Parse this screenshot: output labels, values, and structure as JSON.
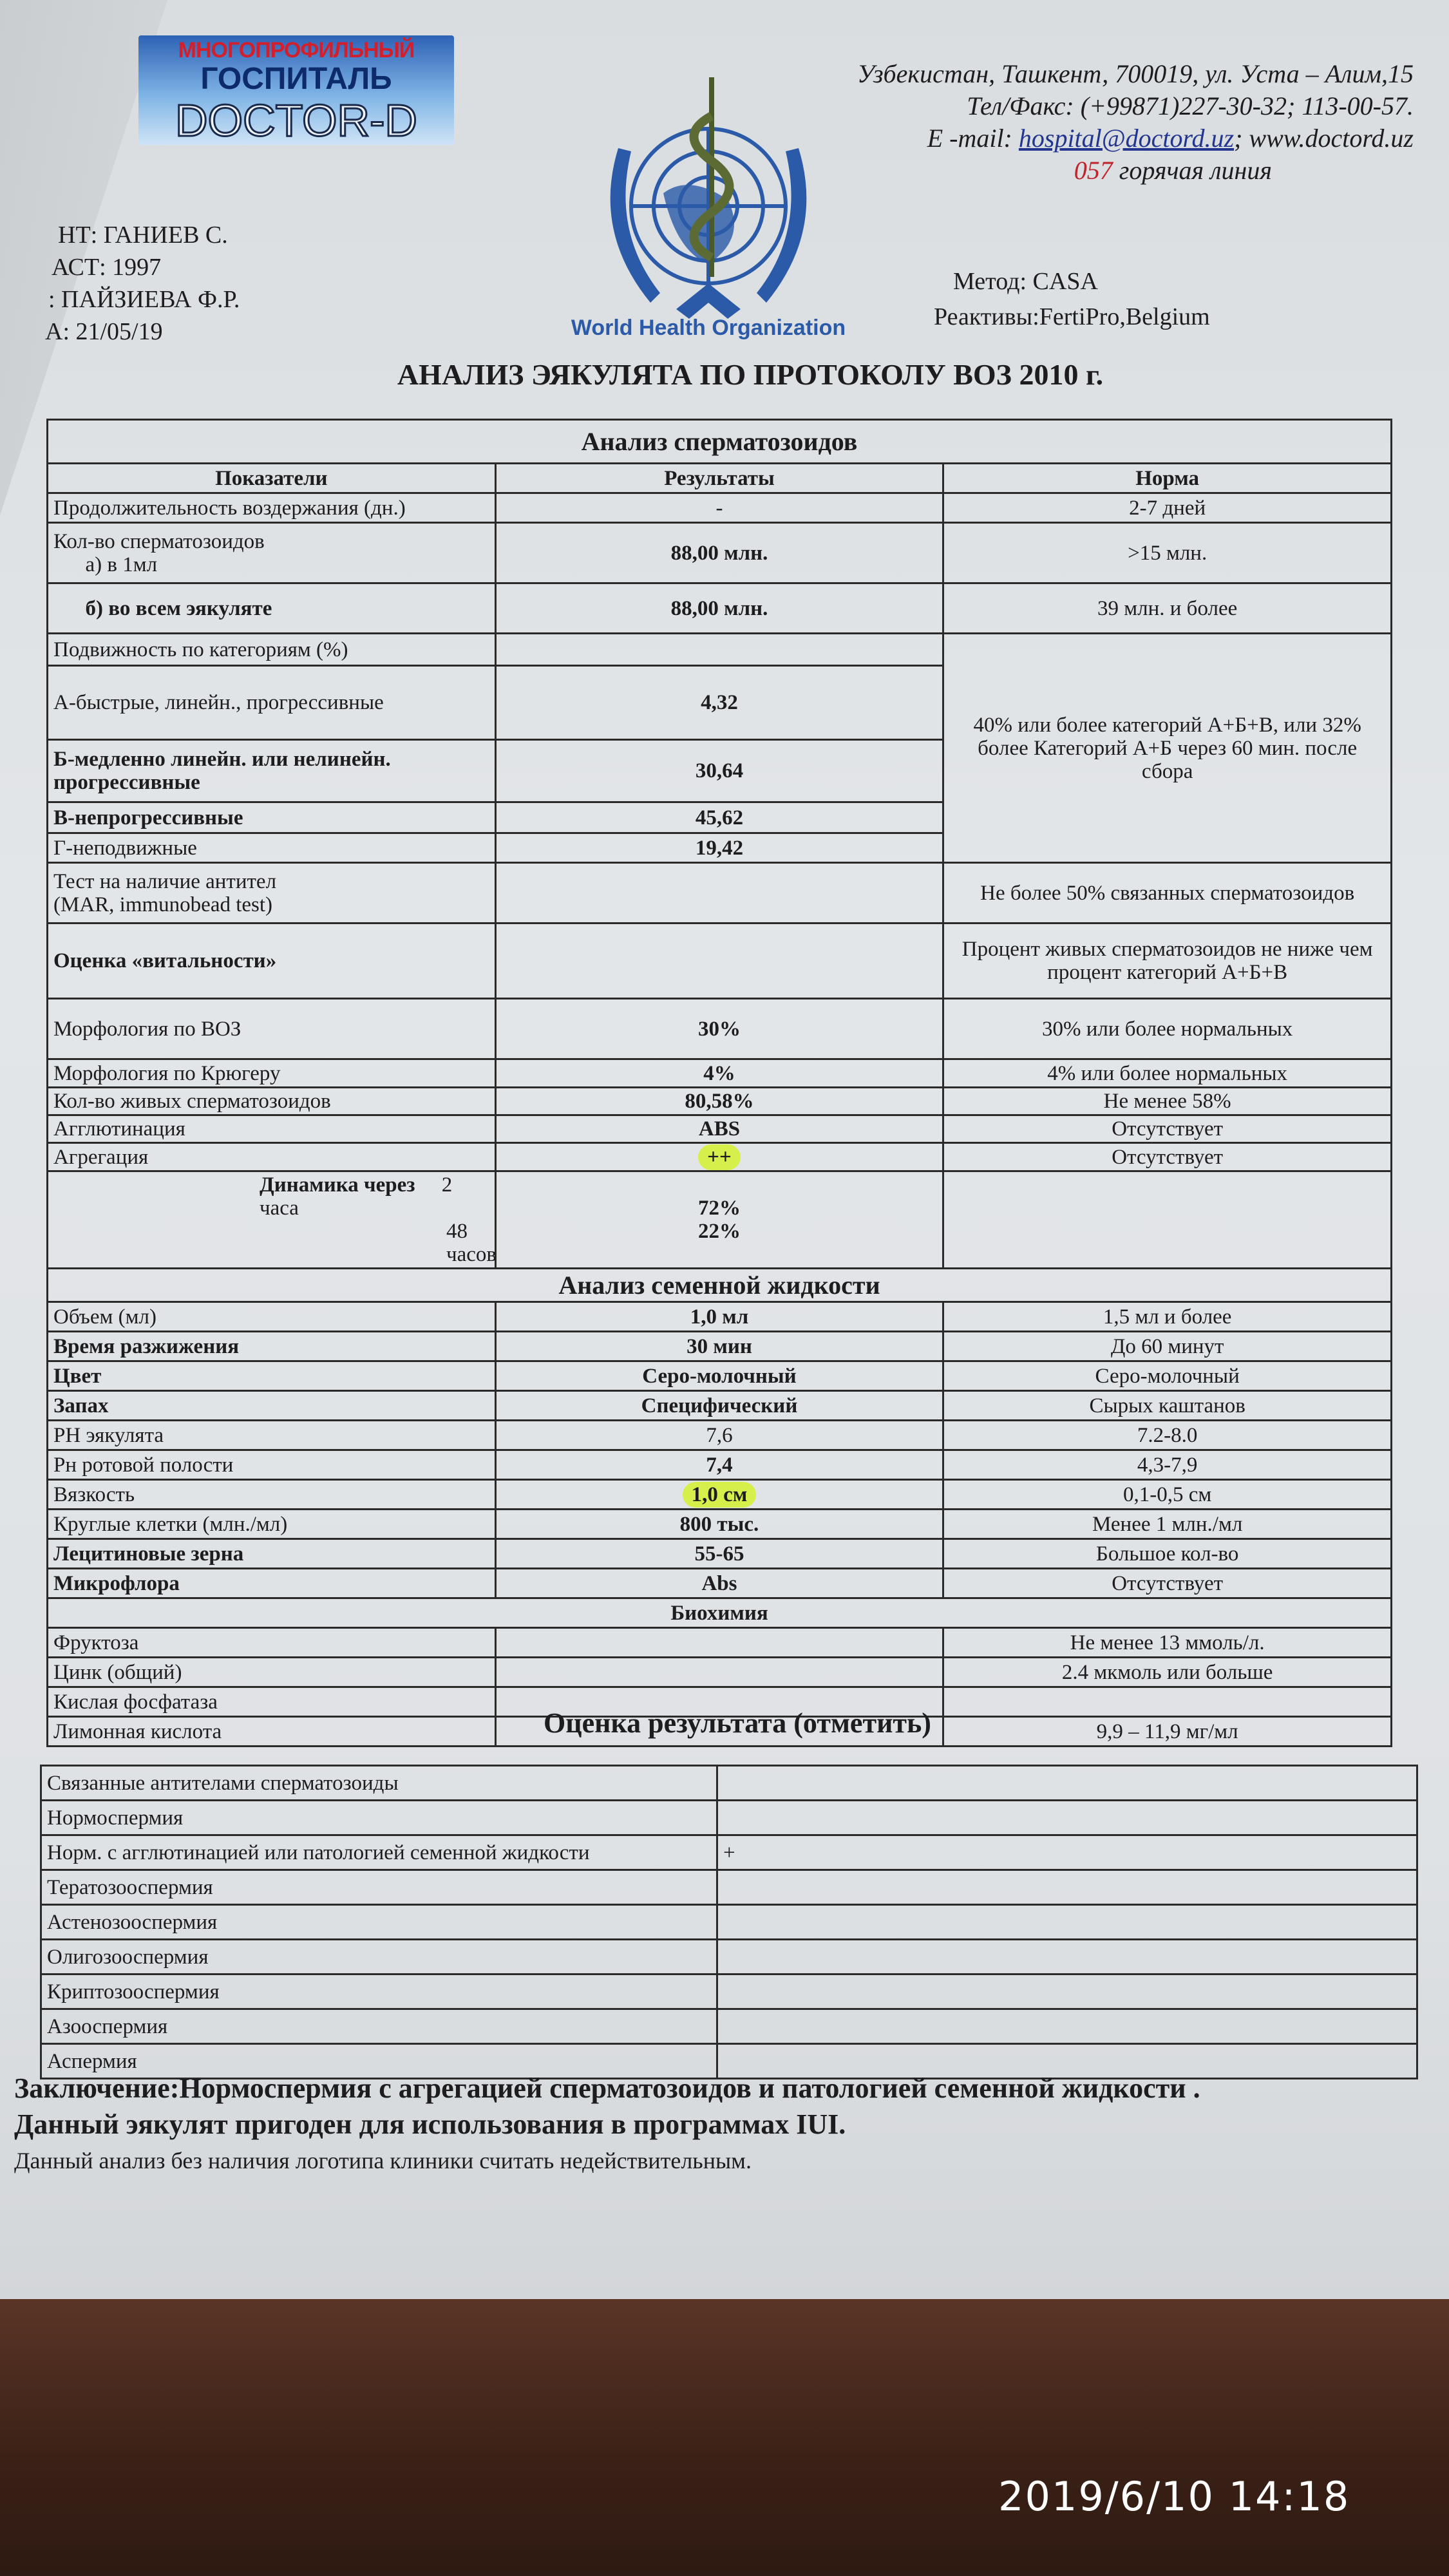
{
  "logo": {
    "line1": "МНОГОПРОФИЛЬНЫЙ",
    "line2": "ГОСПИТАЛЬ",
    "line3": "DOCTOR-D"
  },
  "who": {
    "label": "World Health Organization",
    "icon": "who-emblem-icon",
    "color": "#2a5aa8"
  },
  "address": {
    "line1": "Узбекистан, Ташкент, 700019, ул. Уста – Алим,15",
    "line2": "Тел/Факс: (+99871)227-30-32; 113-00-57.",
    "email_label": "E -mail:",
    "email": "hospital@doctord.uz",
    "website": "; www.doctord.uz",
    "hotline_num": "057",
    "hotline_text": " горячая линия"
  },
  "patient": {
    "name": "НТ: ГАНИЕВ С.",
    "year": "АСТ: 1997",
    "doctor": ": ПАЙЗИЕВА Ф.Р.",
    "date": "А: 21/05/19"
  },
  "method": {
    "method": "Метод: CASA",
    "reagents": "Реактивы:FertiPro,Belgium"
  },
  "title": "АНАЛИЗ ЭЯКУЛЯТА ПО ПРОТОКОЛУ ВОЗ 2010 г.",
  "sperm": {
    "section": "Анализ сперматозоидов",
    "headers": [
      "Показатели",
      "Результаты",
      "Норма"
    ],
    "rows": [
      {
        "label": "Продолжительность воздержания (дн.)",
        "result": "-",
        "norm": "2-7 дней",
        "h": 46
      },
      {
        "label": "Кол-во сперматозоидов\n      а) в 1мл",
        "result": "88,00  млн.",
        "norm": ">15 млн.",
        "h": 94,
        "bold": true
      },
      {
        "label": "      б) во всем эякуляте",
        "result": "88,00  млн.",
        "norm": "39 млн. и более",
        "h": 78,
        "bold": true,
        "lbold": true
      },
      {
        "label": "Подвижность по категориям (%)",
        "result": "",
        "norm": "40% или более категорий А+Б+В, или 32% более Категорий А+Б через 60 мин. после сбора",
        "h": 50,
        "span": 5
      },
      {
        "label": "А-быстрые, линейн., прогрессивные",
        "result": "4,32",
        "h": 115,
        "bold": true
      },
      {
        "label": "Б-медленно линейн. или нелинейн. прогрессивные",
        "result": "30,64",
        "h": 97,
        "bold": true,
        "lbold": true
      },
      {
        "label": "В-непрогрессивные",
        "result": "45,62",
        "h": 48,
        "bold": true,
        "lbold": true
      },
      {
        "label": "Г-неподвижные",
        "result": "19,42",
        "h": 46,
        "bold": true
      },
      {
        "label": "Тест на наличие антител\n(MAR, immunobead test)",
        "result": "",
        "norm": "Не более 50% связанных сперматозоидов",
        "h": 94
      },
      {
        "label": "Оценка «витальности»",
        "result": "",
        "norm": "Процент живых сперматозоидов не ниже чем процент категорий А+Б+В",
        "h": 117,
        "lbold": true
      },
      {
        "label": "Морфология по ВОЗ",
        "result": "30%",
        "norm": "30%  или более нормальных",
        "h": 94,
        "bold": true
      },
      {
        "label": "Морфология по Крюгеру",
        "result": "4%",
        "norm": "4% или более нормальных",
        "h": 44,
        "bold": true
      },
      {
        "label": "Кол-во живых сперматозоидов",
        "result": "80,58%",
        "norm": "Не менее 58%",
        "h": 42,
        "bold": true
      },
      {
        "label": "Агглютинация",
        "result": "ABS",
        "norm": "Отсутствует",
        "h": 42,
        "bold": true
      },
      {
        "label": "Агрегация",
        "result": "++",
        "norm": "Отсутствует",
        "h": 44,
        "bold": true,
        "highlight": true
      }
    ],
    "dynamics": {
      "label": "Динамика через",
      "t1": "2 часа",
      "t2": "48 часов",
      "v1": "72%",
      "v2": "22%"
    }
  },
  "fluid": {
    "section": "Анализ семенной жидкости",
    "rows": [
      {
        "label": "Объем (мл)",
        "result": "1,0 мл",
        "norm": "1,5 мл и более",
        "bold": true
      },
      {
        "label": "Время разжижения",
        "result": "30 мин",
        "norm": "До 60 минут",
        "bold": true,
        "lbold": true
      },
      {
        "label": "Цвет",
        "result": "Серо-молочный",
        "norm": "Серо-молочный",
        "bold": true,
        "lbold": true
      },
      {
        "label": "Запах",
        "result": "Специфический",
        "norm": "Сырых каштанов",
        "bold": true,
        "lbold": true
      },
      {
        "label": "РН эякулята",
        "result": "7,6",
        "norm": "7.2-8.0"
      },
      {
        "label": "Рн ротовой полости",
        "result": "7,4",
        "norm": "4,3-7,9",
        "bold": true
      },
      {
        "label": "Вязкость",
        "result": "1,0 см",
        "norm": "0,1-0,5 см",
        "bold": true,
        "highlight": true
      },
      {
        "label": "Круглые клетки (млн./мл)",
        "result": "800 тыс.",
        "norm": "Менее 1 млн./мл",
        "bold": true
      },
      {
        "label": "Лецитиновые зерна",
        "result": "55-65",
        "norm": "Большое кол-во",
        "bold": true,
        "lbold": true
      },
      {
        "label": "Микрофлора",
        "result": "Abs",
        "norm": "Отсутствует",
        "bold": true,
        "lbold": true
      }
    ],
    "bio_section": "Биохимия",
    "bio_rows": [
      {
        "label": "Фруктоза",
        "result": "",
        "norm": "Не менее 13 ммоль/л."
      },
      {
        "label": "Цинк (общий)",
        "result": "",
        "norm": "2.4 мкмоль или больше"
      },
      {
        "label": "Кислая фосфатаза",
        "result": "",
        "norm": ""
      },
      {
        "label": "Лимонная кислота",
        "result": "",
        "norm": "9,9 – 11,9 мг/мл"
      }
    ]
  },
  "evaluation": {
    "title": "Оценка результата (отметить)",
    "rows": [
      {
        "label": "Связанные антителами сперматозоиды",
        "mark": ""
      },
      {
        "label": "Нормоспермия",
        "mark": ""
      },
      {
        "label": "Норм. с агглютинацией или патологией семенной жидкости",
        "mark": "+"
      },
      {
        "label": "Тератозооспермия",
        "mark": ""
      },
      {
        "label": "Астенозооспермия",
        "mark": ""
      },
      {
        "label": "Олигозооспермия",
        "mark": ""
      },
      {
        "label": "Криптозооспермия",
        "mark": ""
      },
      {
        "label": "Азооспермия",
        "mark": ""
      },
      {
        "label": "Аспермия",
        "mark": ""
      }
    ]
  },
  "conclusion": {
    "line1": "Заключение:Нормоспермия с  агрегацией сперматозоидов и  патологией  семенной  жидкости .",
    "line2": "Данный эякулят пригоден для использования в программах IUI.",
    "note": "Данный анализ без наличия логотипа клиники считать недействительным."
  },
  "timestamp": "2019/6/10  14:18",
  "colors": {
    "highlight": "#d6ef4a",
    "hotline": "#c0242b",
    "link": "#22358f"
  }
}
